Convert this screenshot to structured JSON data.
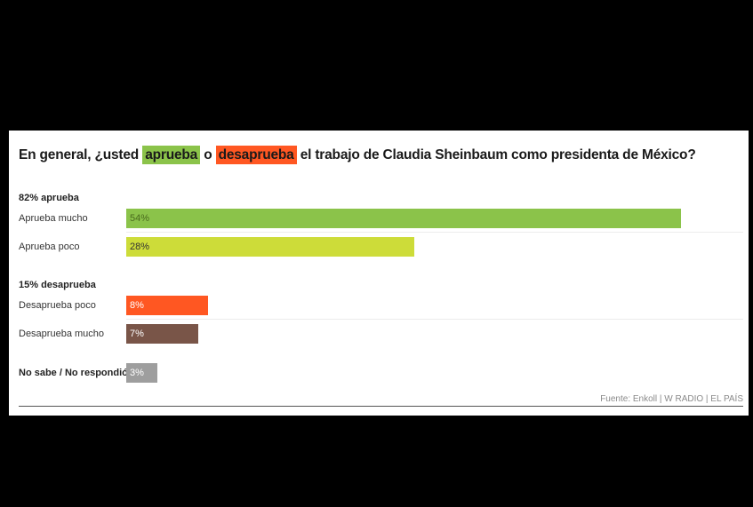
{
  "title": {
    "part1": "En general, ¿usted ",
    "aprueba": "aprueba",
    "part2": " o ",
    "desaprueba": "desaprueba",
    "part3": " el trabajo de Claudia Sheinbaum como presidenta de México?"
  },
  "source": "Fuente: Enkoll | W RADIO | EL PAÍS",
  "colors": {
    "aprueba_highlight": "#8bc34a",
    "desaprueba_highlight": "#ff5722"
  },
  "chart_data": {
    "type": "bar",
    "orientation": "horizontal",
    "xlim": [
      0,
      54
    ],
    "groups": [
      {
        "label": "82% aprueba",
        "bars": [
          {
            "label": "Aprueba mucho",
            "value": 54,
            "value_label": "54%",
            "color": "#8bc34a",
            "text_color": "#4a6b1e"
          },
          {
            "label": "Aprueba poco",
            "value": 28,
            "value_label": "28%",
            "color": "#cddc39",
            "text_color": "#333333"
          }
        ]
      },
      {
        "label": "15% desaprueba",
        "bars": [
          {
            "label": "Desaprueba poco",
            "value": 8,
            "value_label": "8%",
            "color": "#ff5722",
            "text_color": "#ffffff"
          },
          {
            "label": "Desaprueba mucho",
            "value": 7,
            "value_label": "7%",
            "color": "#795548",
            "text_color": "#ffffff"
          }
        ]
      },
      {
        "label": "",
        "bars": [
          {
            "label": "No sabe / No respondió",
            "value": 3,
            "value_label": "3%",
            "color": "#9e9e9e",
            "text_color": "#ffffff",
            "bold_label": true
          }
        ]
      }
    ]
  }
}
